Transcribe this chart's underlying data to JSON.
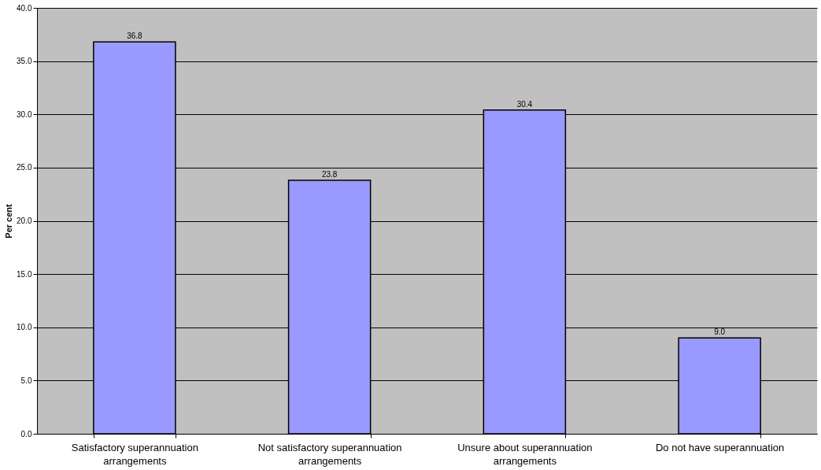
{
  "chart_data": {
    "type": "bar",
    "ylabel": "Per cent",
    "categories": [
      "Satisfactory superannuation arrangements",
      "Not satisfactory superannuation arrangements",
      "Unsure about superannuation arrangements",
      "Do not have superannuation"
    ],
    "values": [
      36.8,
      23.8,
      30.4,
      9.0
    ],
    "value_labels": [
      "36.8",
      "23.8",
      "30.4",
      "9.0"
    ],
    "color": "#9999ff",
    "ylim": [
      0,
      40
    ],
    "yticks": [
      {
        "value": 0,
        "label": "0.0"
      },
      {
        "value": 5,
        "label": "5.0"
      },
      {
        "value": 10,
        "label": "10.0"
      },
      {
        "value": 15,
        "label": "15.0"
      },
      {
        "value": 20,
        "label": "20.0"
      },
      {
        "value": 25,
        "label": "25.0"
      },
      {
        "value": 30,
        "label": "30.0"
      },
      {
        "value": 35,
        "label": "35.0"
      },
      {
        "value": 40,
        "label": "40.0"
      }
    ],
    "grid": "y"
  }
}
